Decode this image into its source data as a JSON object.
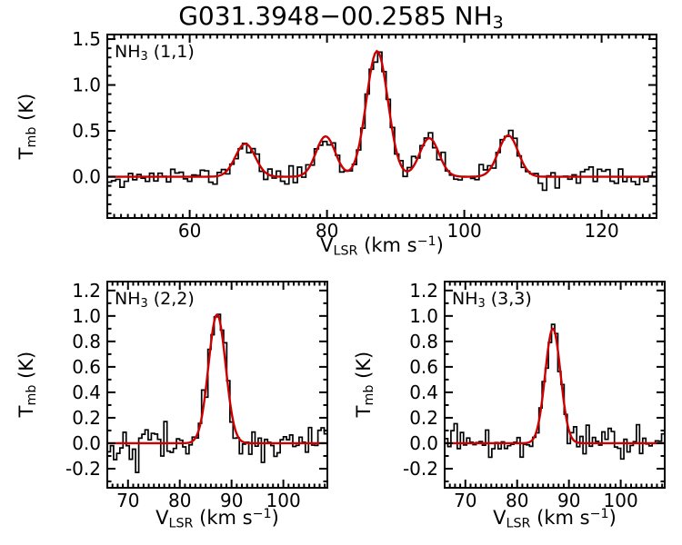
{
  "figure": {
    "title_parts": {
      "pre": "G031.3948−00.2585 NH",
      "sub": "3"
    },
    "colors": {
      "background": "#ffffff",
      "frame": "#000000",
      "data": "#000000",
      "fit": "#cc0000"
    }
  },
  "axis_labels": {
    "x": {
      "pre": "V",
      "sub": "LSR",
      "mid": " (km s",
      "sup": "−1",
      "post": ")"
    },
    "y": {
      "pre": "T",
      "sub": "mb",
      "post": " (K)"
    }
  },
  "chart_data": [
    {
      "type": "line",
      "id": "nh3-11",
      "label_parts": {
        "pre": "NH",
        "sub": "3",
        "post": " (1,1)"
      },
      "xlabel": "V_LSR (km s^-1)",
      "ylabel": "T_mb (K)",
      "xlim": [
        48,
        128
      ],
      "ylim": [
        -0.45,
        1.55
      ],
      "xticks": [
        60,
        80,
        100,
        120
      ],
      "xtick_labels": [
        "60",
        "80",
        "100",
        "120"
      ],
      "yticks": [
        0.0,
        0.5,
        1.0,
        1.5
      ],
      "ytick_labels": [
        "0.0",
        "0.5",
        "1.0",
        "1.5"
      ],
      "x_minor": 1,
      "y_minor": 0.1,
      "channels": 130,
      "noise_rms": 0.052,
      "grid": false,
      "gaussians": [
        {
          "center": 68.1,
          "amplitude": 0.36,
          "fwhm": 3.4
        },
        {
          "center": 79.8,
          "amplitude": 0.44,
          "fwhm": 3.3
        },
        {
          "center": 87.3,
          "amplitude": 1.37,
          "fwhm": 3.7
        },
        {
          "center": 94.9,
          "amplitude": 0.42,
          "fwhm": 3.3
        },
        {
          "center": 106.4,
          "amplitude": 0.45,
          "fwhm": 3.4
        }
      ]
    },
    {
      "type": "line",
      "id": "nh3-22",
      "label_parts": {
        "pre": "NH",
        "sub": "3",
        "post": " (2,2)"
      },
      "xlabel": "V_LSR (km s^-1)",
      "ylabel": "T_mb (K)",
      "xlim": [
        66,
        108.5
      ],
      "ylim": [
        -0.35,
        1.27
      ],
      "xticks": [
        70,
        80,
        90,
        100
      ],
      "xtick_labels": [
        "70",
        "80",
        "90",
        "100"
      ],
      "yticks": [
        -0.2,
        0.0,
        0.2,
        0.4,
        0.6,
        0.8,
        1.0,
        1.2
      ],
      "ytick_labels": [
        "-0.2",
        "0.0",
        "0.2",
        "0.4",
        "0.6",
        "0.8",
        "1.0",
        "1.2"
      ],
      "x_minor": 1,
      "y_minor": 0.1,
      "channels": 70,
      "noise_rms": 0.07,
      "grid": false,
      "gaussians": [
        {
          "center": 87.2,
          "amplitude": 1.01,
          "fwhm": 3.9
        }
      ]
    },
    {
      "type": "line",
      "id": "nh3-33",
      "label_parts": {
        "pre": "NH",
        "sub": "3",
        "post": " (3,3)"
      },
      "xlabel": "V_LSR (km s^-1)",
      "ylabel": "T_mb (K)",
      "xlim": [
        66,
        108.5
      ],
      "ylim": [
        -0.35,
        1.27
      ],
      "xticks": [
        70,
        80,
        90,
        100
      ],
      "xtick_labels": [
        "70",
        "80",
        "90",
        "100"
      ],
      "yticks": [
        -0.2,
        0.0,
        0.2,
        0.4,
        0.6,
        0.8,
        1.0,
        1.2
      ],
      "ytick_labels": [
        "-0.2",
        "0.0",
        "0.2",
        "0.4",
        "0.6",
        "0.8",
        "1.0",
        "1.2"
      ],
      "x_minor": 1,
      "y_minor": 0.1,
      "channels": 70,
      "noise_rms": 0.065,
      "grid": false,
      "gaussians": [
        {
          "center": 86.9,
          "amplitude": 0.9,
          "fwhm": 3.5
        }
      ]
    }
  ]
}
